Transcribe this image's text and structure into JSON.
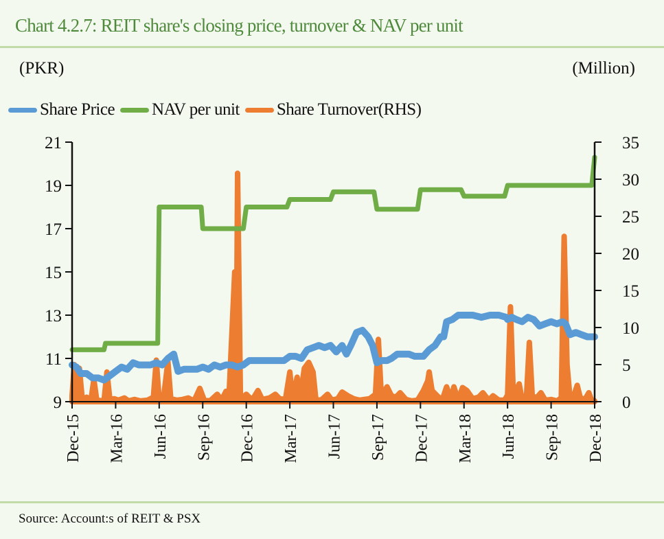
{
  "chart_data": {
    "type": "line",
    "title": "Chart 4.2.7: REIT share's closing price, turnover & NAV per unit",
    "ylabel_left": "(PKR)",
    "ylabel_right": "(Million)",
    "source": "Source:  Account:s  of REIT  & PSX",
    "x_ticks": [
      "Dec-15",
      "Mar-16",
      "Jun-16",
      "Sep-16",
      "Dec-16",
      "Mar-17",
      "Jun-17",
      "Sep-17",
      "Dec-17",
      "Mar-18",
      "Jun-18",
      "Sep-18",
      "Dec-18"
    ],
    "x_unit": "months since Dec-15",
    "y_left": {
      "min": 9,
      "max": 21,
      "ticks": [
        "9",
        "11",
        "13",
        "15",
        "17",
        "19",
        "21"
      ]
    },
    "y_right": {
      "min": 0,
      "max": 35,
      "ticks": [
        "0",
        "5",
        "10",
        "15",
        "20",
        "25",
        "30",
        "35"
      ]
    },
    "legend": [
      {
        "name": "Share Price",
        "color": "#5b9bd5"
      },
      {
        "name": "NAV per unit",
        "color": "#70ad47"
      },
      {
        "name": "Share Turnover(RHS)",
        "color": "#ed7d31"
      }
    ],
    "legend_position": "top",
    "series": [
      {
        "name": "NAV per unit",
        "axis": "left",
        "color": "#70ad47",
        "points": [
          [
            0,
            11.4
          ],
          [
            2.2,
            11.4
          ],
          [
            2.3,
            11.7
          ],
          [
            5.9,
            11.7
          ],
          [
            6.0,
            18.0
          ],
          [
            8.9,
            18.0
          ],
          [
            9.0,
            17.0
          ],
          [
            11.8,
            17.0
          ],
          [
            12.0,
            18.0
          ],
          [
            14.8,
            18.0
          ],
          [
            15.0,
            18.35
          ],
          [
            17.8,
            18.35
          ],
          [
            18.0,
            18.7
          ],
          [
            20.8,
            18.7
          ],
          [
            21.0,
            17.9
          ],
          [
            23.8,
            17.9
          ],
          [
            24.0,
            18.8
          ],
          [
            26.8,
            18.8
          ],
          [
            27.0,
            18.5
          ],
          [
            29.8,
            18.5
          ],
          [
            30.0,
            19.0
          ],
          [
            35.8,
            19.0
          ],
          [
            36.0,
            20.3
          ]
        ]
      },
      {
        "name": "Share Price",
        "axis": "left",
        "color": "#5b9bd5",
        "points": [
          [
            0,
            10.7
          ],
          [
            0.3,
            10.6
          ],
          [
            0.6,
            10.3
          ],
          [
            1.0,
            10.3
          ],
          [
            1.4,
            10.1
          ],
          [
            1.8,
            10.1
          ],
          [
            2.2,
            10.0
          ],
          [
            2.6,
            10.2
          ],
          [
            3.0,
            10.4
          ],
          [
            3.4,
            10.6
          ],
          [
            3.8,
            10.5
          ],
          [
            4.2,
            10.8
          ],
          [
            4.6,
            10.7
          ],
          [
            5.0,
            10.7
          ],
          [
            5.4,
            10.7
          ],
          [
            5.8,
            10.8
          ],
          [
            6.2,
            10.7
          ],
          [
            6.6,
            11.0
          ],
          [
            7.0,
            11.2
          ],
          [
            7.3,
            10.4
          ],
          [
            7.7,
            10.5
          ],
          [
            8.2,
            10.5
          ],
          [
            8.6,
            10.5
          ],
          [
            9.0,
            10.6
          ],
          [
            9.4,
            10.5
          ],
          [
            9.8,
            10.7
          ],
          [
            10.2,
            10.6
          ],
          [
            10.6,
            10.7
          ],
          [
            11.0,
            10.7
          ],
          [
            11.4,
            10.6
          ],
          [
            11.8,
            10.7
          ],
          [
            12.2,
            10.9
          ],
          [
            12.6,
            10.9
          ],
          [
            13.0,
            10.9
          ],
          [
            13.4,
            10.9
          ],
          [
            13.8,
            10.9
          ],
          [
            14.2,
            10.9
          ],
          [
            14.6,
            10.9
          ],
          [
            15.0,
            11.1
          ],
          [
            15.4,
            11.1
          ],
          [
            15.8,
            11.0
          ],
          [
            16.2,
            11.4
          ],
          [
            16.6,
            11.5
          ],
          [
            17.0,
            11.6
          ],
          [
            17.4,
            11.5
          ],
          [
            17.8,
            11.6
          ],
          [
            18.2,
            11.3
          ],
          [
            18.6,
            11.6
          ],
          [
            18.9,
            11.2
          ],
          [
            19.2,
            11.6
          ],
          [
            19.6,
            12.2
          ],
          [
            20.0,
            12.3
          ],
          [
            20.4,
            12.0
          ],
          [
            20.7,
            11.6
          ],
          [
            21.0,
            10.8
          ],
          [
            21.3,
            10.9
          ],
          [
            21.7,
            10.9
          ],
          [
            22.0,
            11.0
          ],
          [
            22.4,
            11.2
          ],
          [
            22.8,
            11.2
          ],
          [
            23.2,
            11.2
          ],
          [
            23.6,
            11.1
          ],
          [
            24.0,
            11.1
          ],
          [
            24.2,
            11.1
          ],
          [
            24.6,
            11.4
          ],
          [
            25.0,
            11.6
          ],
          [
            25.4,
            12.0
          ],
          [
            25.6,
            12.0
          ],
          [
            25.8,
            12.7
          ],
          [
            26.2,
            12.8
          ],
          [
            26.6,
            13.0
          ],
          [
            27.0,
            13.0
          ],
          [
            27.6,
            13.0
          ],
          [
            28.2,
            12.9
          ],
          [
            28.8,
            13.0
          ],
          [
            29.4,
            13.0
          ],
          [
            29.9,
            12.9
          ],
          [
            30.0,
            12.8
          ],
          [
            30.3,
            12.9
          ],
          [
            30.6,
            12.8
          ],
          [
            31.0,
            12.7
          ],
          [
            31.4,
            12.9
          ],
          [
            31.8,
            12.8
          ],
          [
            32.2,
            12.5
          ],
          [
            32.6,
            12.6
          ],
          [
            33.0,
            12.7
          ],
          [
            33.4,
            12.6
          ],
          [
            33.8,
            12.7
          ],
          [
            34.0,
            12.6
          ],
          [
            34.3,
            12.1
          ],
          [
            34.7,
            12.2
          ],
          [
            35.1,
            12.1
          ],
          [
            35.5,
            12.0
          ],
          [
            36.0,
            12.0
          ]
        ]
      },
      {
        "name": "Share Turnover(RHS)",
        "axis": "right",
        "color": "#ed7d31",
        "points": [
          [
            0,
            0.8
          ],
          [
            0.15,
            5.0
          ],
          [
            0.3,
            0.4
          ],
          [
            0.5,
            4.5
          ],
          [
            0.7,
            0.3
          ],
          [
            1.0,
            0.6
          ],
          [
            1.3,
            0.2
          ],
          [
            1.5,
            3.0
          ],
          [
            1.7,
            0.2
          ],
          [
            2.2,
            0.1
          ],
          [
            2.4,
            4.0
          ],
          [
            2.6,
            0.3
          ],
          [
            2.9,
            0.4
          ],
          [
            3.2,
            0.2
          ],
          [
            3.6,
            0.5
          ],
          [
            3.9,
            0.1
          ],
          [
            4.3,
            0.3
          ],
          [
            4.7,
            0.1
          ],
          [
            5.2,
            0.2
          ],
          [
            5.6,
            0.6
          ],
          [
            5.8,
            5.6
          ],
          [
            6.0,
            0.3
          ],
          [
            6.3,
            0.5
          ],
          [
            6.6,
            5.4
          ],
          [
            6.8,
            0.4
          ],
          [
            7.2,
            0.2
          ],
          [
            7.6,
            0.3
          ],
          [
            8.0,
            0.5
          ],
          [
            8.4,
            0.1
          ],
          [
            8.8,
            1.8
          ],
          [
            9.1,
            0.2
          ],
          [
            9.5,
            0.1
          ],
          [
            10.0,
            1.0
          ],
          [
            10.3,
            0.2
          ],
          [
            10.6,
            1.4
          ],
          [
            10.8,
            0.3
          ],
          [
            11.2,
            17.5
          ],
          [
            11.3,
            0.5
          ],
          [
            11.4,
            30.8
          ],
          [
            11.6,
            0.3
          ],
          [
            12.0,
            1.0
          ],
          [
            12.4,
            0.2
          ],
          [
            12.8,
            1.5
          ],
          [
            13.1,
            0.3
          ],
          [
            13.6,
            0.5
          ],
          [
            14.0,
            1.0
          ],
          [
            14.3,
            0.4
          ],
          [
            14.7,
            0.3
          ],
          [
            15.0,
            4.0
          ],
          [
            15.2,
            0.2
          ],
          [
            15.5,
            3.3
          ],
          [
            15.7,
            0.4
          ],
          [
            16.0,
            4.5
          ],
          [
            16.3,
            5.3
          ],
          [
            16.6,
            4.0
          ],
          [
            16.8,
            0.2
          ],
          [
            17.2,
            0.3
          ],
          [
            17.6,
            1.0
          ],
          [
            17.9,
            0.2
          ],
          [
            18.3,
            0.4
          ],
          [
            18.6,
            1.3
          ],
          [
            19.0,
            0.8
          ],
          [
            19.4,
            0.4
          ],
          [
            19.8,
            0.2
          ],
          [
            20.1,
            0.3
          ],
          [
            20.5,
            0.4
          ],
          [
            20.9,
            1.0
          ],
          [
            21.1,
            8.4
          ],
          [
            21.3,
            0.8
          ],
          [
            21.7,
            2.0
          ],
          [
            22.0,
            0.8
          ],
          [
            22.3,
            0.6
          ],
          [
            22.6,
            1.2
          ],
          [
            23.0,
            0.3
          ],
          [
            23.4,
            0.1
          ],
          [
            23.8,
            0.2
          ],
          [
            24.2,
            1.5
          ],
          [
            24.5,
            2.8
          ],
          [
            24.6,
            4.0
          ],
          [
            24.8,
            1.5
          ],
          [
            25.2,
            0.7
          ],
          [
            25.5,
            0.2
          ],
          [
            25.8,
            2.0
          ],
          [
            26.1,
            0.3
          ],
          [
            26.3,
            2.0
          ],
          [
            26.6,
            0.2
          ],
          [
            26.9,
            1.9
          ],
          [
            27.2,
            1.5
          ],
          [
            27.6,
            0.4
          ],
          [
            28.0,
            0.6
          ],
          [
            28.3,
            1.2
          ],
          [
            28.7,
            0.2
          ],
          [
            29.0,
            0.8
          ],
          [
            29.4,
            0.2
          ],
          [
            29.8,
            0.2
          ],
          [
            30.0,
            0.9
          ],
          [
            30.2,
            12.8
          ],
          [
            30.4,
            0.7
          ],
          [
            30.8,
            2.4
          ],
          [
            31.0,
            0.3
          ],
          [
            31.3,
            0.5
          ],
          [
            31.5,
            8.0
          ],
          [
            31.7,
            0.8
          ],
          [
            32.0,
            0.5
          ],
          [
            32.3,
            1.2
          ],
          [
            32.6,
            0.2
          ],
          [
            33.0,
            0.3
          ],
          [
            33.4,
            0.1
          ],
          [
            33.7,
            0.5
          ],
          [
            33.9,
            22.3
          ],
          [
            34.1,
            5.0
          ],
          [
            34.3,
            0.5
          ],
          [
            34.6,
            1.0
          ],
          [
            34.8,
            2.2
          ],
          [
            35.0,
            0.6
          ],
          [
            35.3,
            0.2
          ],
          [
            35.6,
            1.2
          ],
          [
            35.8,
            0.1
          ],
          [
            36.0,
            0.1
          ]
        ]
      }
    ]
  }
}
